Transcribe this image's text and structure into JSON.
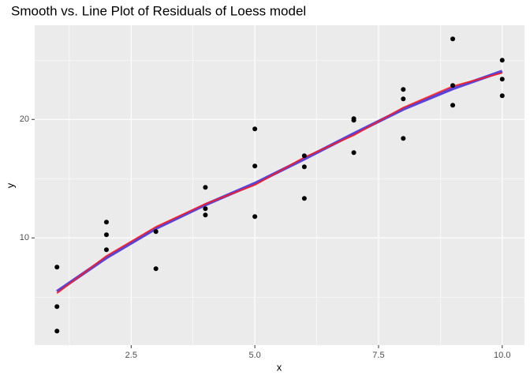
{
  "chart_data": {
    "type": "scatter",
    "title": "Smooth vs. Line Plot of Residuals of Loess model",
    "x_label": "x",
    "y_label": "y",
    "points": {
      "color": "#000000",
      "x": [
        1,
        1,
        1,
        2,
        2,
        2,
        3,
        3,
        4,
        4,
        4,
        5,
        5,
        5,
        6,
        6,
        6,
        7,
        7,
        7,
        8,
        8,
        8,
        9,
        9,
        9,
        10,
        10,
        10
      ],
      "y": [
        7.53,
        4.2,
        2.13,
        11.33,
        10.27,
        9.0,
        10.53,
        7.4,
        14.27,
        12.47,
        11.93,
        19.2,
        16.07,
        11.8,
        16.93,
        16.0,
        13.33,
        20.07,
        19.93,
        17.2,
        22.53,
        21.73,
        18.4,
        26.8,
        22.87,
        21.2,
        25.0,
        23.4,
        22.0
      ]
    },
    "x": [
      1,
      2,
      3,
      4,
      5,
      6,
      7,
      8,
      9,
      10
    ],
    "series": [
      {
        "color": "#5a44d8",
        "values": [
          5.47,
          8.33,
          10.8,
          12.8,
          14.6,
          16.67,
          18.8,
          20.87,
          22.6,
          24.07
        ]
      },
      {
        "color": "#ff1a1a",
        "values": [
          5.33,
          8.47,
          10.93,
          12.87,
          14.47,
          16.8,
          18.67,
          21.0,
          22.8,
          23.93
        ]
      }
    ],
    "xlim": [
      0.55,
      10.45
    ],
    "ylim": [
      0.95,
      27.95
    ],
    "xticks": [
      {
        "value": 2.5,
        "label": "2.5"
      },
      {
        "value": 5,
        "label": "5.0"
      },
      {
        "value": 7.5,
        "label": "7.5"
      },
      {
        "value": 10,
        "label": "10.0"
      }
    ],
    "yticks": [
      10,
      20
    ],
    "xminor": [
      1.25,
      3.75,
      6.25,
      8.75
    ],
    "yminor": [
      5,
      15,
      25
    ],
    "grid": true
  }
}
